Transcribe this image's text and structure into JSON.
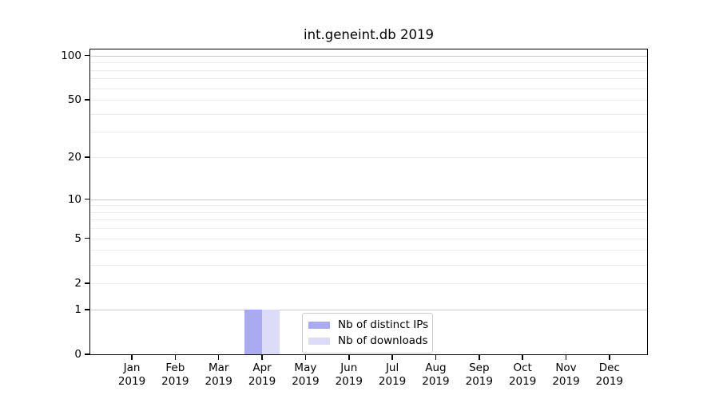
{
  "chart_data": {
    "type": "bar",
    "title": "int.geneint.db 2019",
    "x_categories": [
      "Jan",
      "Feb",
      "Mar",
      "Apr",
      "May",
      "Jun",
      "Jul",
      "Aug",
      "Sep",
      "Oct",
      "Nov",
      "Dec"
    ],
    "x_year": "2019",
    "series": [
      {
        "name": "Nb of distinct IPs",
        "color": "#aaaaf2",
        "values": [
          0,
          0,
          0,
          1,
          0,
          0,
          0,
          0,
          0,
          0,
          0,
          0
        ]
      },
      {
        "name": "Nb of downloads",
        "color": "#dcdcf8",
        "values": [
          0,
          0,
          0,
          1,
          0,
          0,
          0,
          0,
          0,
          0,
          0,
          0
        ]
      }
    ],
    "y_scale": "log1p",
    "y_ticks": [
      0,
      1,
      2,
      5,
      10,
      20,
      50,
      100
    ],
    "y_max": 110,
    "grid": {
      "major": [
        1,
        10,
        100
      ],
      "minor": [
        2,
        3,
        4,
        5,
        6,
        7,
        8,
        9,
        20,
        30,
        40,
        50,
        60,
        70,
        80,
        90
      ]
    },
    "legend_position": "lower center"
  },
  "colors": {
    "background": "#ffffff",
    "axis": "#000000",
    "grid_major": "#c9c9c9",
    "grid_minor": "#ebebeb",
    "legend_border": "#cccccc",
    "text": "#000000"
  }
}
